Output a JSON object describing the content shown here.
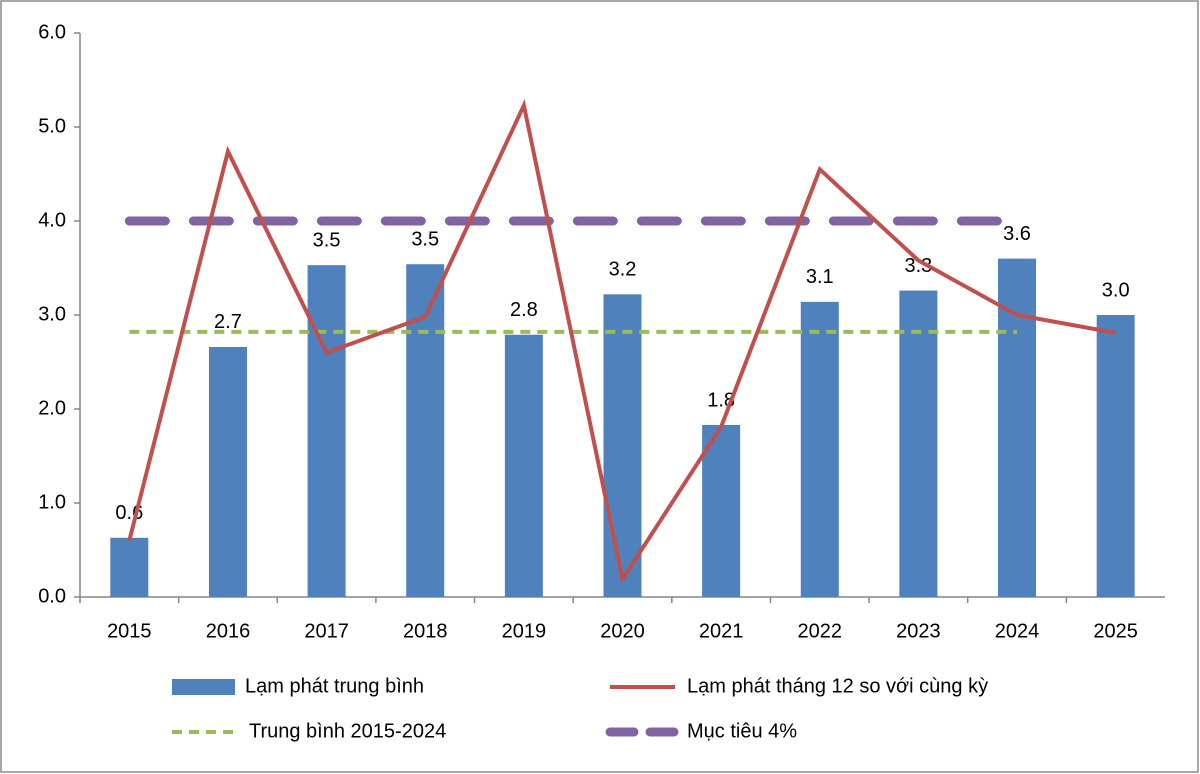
{
  "chart_data": {
    "type": "bar",
    "categories": [
      "2015",
      "2016",
      "2017",
      "2018",
      "2019",
      "2020",
      "2021",
      "2022",
      "2023",
      "2024",
      "2025"
    ],
    "series": [
      {
        "name": "Lạm phát trung bình",
        "style": "bar",
        "color": "#4f81bd",
        "values": [
          0.63,
          2.66,
          3.53,
          3.54,
          2.79,
          3.22,
          1.83,
          3.14,
          3.26,
          3.6,
          3.0
        ],
        "value_labels": [
          "0.6",
          "2.7",
          "3.5",
          "3.5",
          "2.8",
          "3.2",
          "1.8",
          "3.1",
          "3.3",
          "3.6",
          "3.0"
        ]
      },
      {
        "name": "Lạm phát tháng 12 so với cùng kỳ",
        "style": "line",
        "color": "#c0504d",
        "values": [
          0.6,
          4.74,
          2.6,
          2.98,
          5.23,
          0.19,
          1.81,
          4.55,
          3.58,
          3.0,
          2.81
        ]
      },
      {
        "name": "Trung bình 2015-2024",
        "style": "short-dash",
        "color": "#9bbb59",
        "values": [
          2.82,
          2.82,
          2.82,
          2.82,
          2.82,
          2.82,
          2.82,
          2.82,
          2.82,
          2.82,
          null
        ]
      },
      {
        "name": "Mục tiêu 4%",
        "style": "long-dash",
        "color": "#8064a2",
        "values": [
          4,
          4,
          4,
          4,
          4,
          4,
          4,
          4,
          4,
          4,
          null
        ]
      }
    ],
    "ylim": [
      0,
      6
    ],
    "yticks": [
      {
        "value": 0,
        "label": "0.0"
      },
      {
        "value": 1,
        "label": "1.0"
      },
      {
        "value": 2,
        "label": "2.0"
      },
      {
        "value": 3,
        "label": "3.0"
      },
      {
        "value": 4,
        "label": "4.0"
      },
      {
        "value": 5,
        "label": "5.0"
      },
      {
        "value": 6,
        "label": "6.0"
      }
    ],
    "grid": false,
    "legend": "bottom"
  }
}
